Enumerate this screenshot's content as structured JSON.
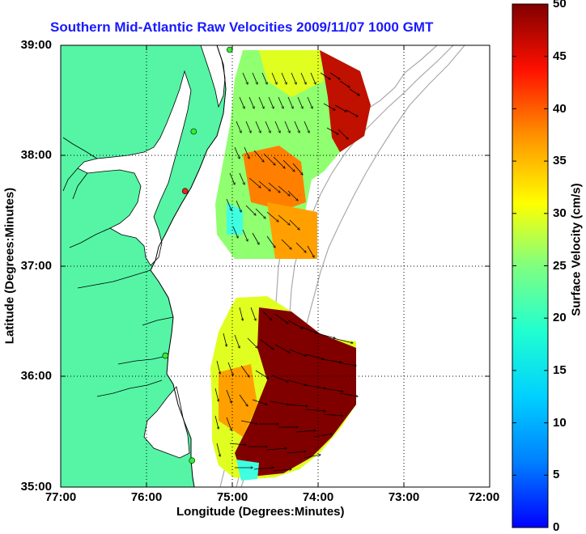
{
  "title": "Southern Mid-Atlantic Raw Velocities 2009/11/07 1000 GMT",
  "map": {
    "lon_range": [
      -77,
      -72
    ],
    "lat_range": [
      35,
      39
    ],
    "x_ticks": [
      "77:00",
      "76:00",
      "75:00",
      "74:00",
      "73:00",
      "72:00"
    ],
    "y_ticks": [
      "39:00",
      "38:00",
      "37:00",
      "36:00",
      "35:00"
    ],
    "xlabel": "Longitude (Degrees:Minutes)",
    "ylabel": "Latitude (Degrees:Minutes)",
    "grid": true,
    "colors": {
      "land": "#55f5a5",
      "water": "#ffffff",
      "coastline": "#000000",
      "bathymetry": "#aaaaaa",
      "station_green": "#33ee33",
      "station_red": "#ee2222"
    }
  },
  "colorbar": {
    "label": "Surface Velocity (cm/s)",
    "range": [
      0,
      50
    ],
    "ticks": [
      "50",
      "45",
      "40",
      "35",
      "30",
      "25",
      "20",
      "15",
      "10",
      "5",
      "0"
    ],
    "colormap": "jet"
  },
  "stations": [
    {
      "lon": -75.03,
      "lat": 38.96,
      "color": "green"
    },
    {
      "lon": -75.45,
      "lat": 38.22,
      "color": "green"
    },
    {
      "lon": -75.55,
      "lat": 37.68,
      "color": "red"
    },
    {
      "lon": -75.78,
      "lat": 36.19,
      "color": "green"
    },
    {
      "lon": -75.47,
      "lat": 35.24,
      "color": "green"
    }
  ]
}
